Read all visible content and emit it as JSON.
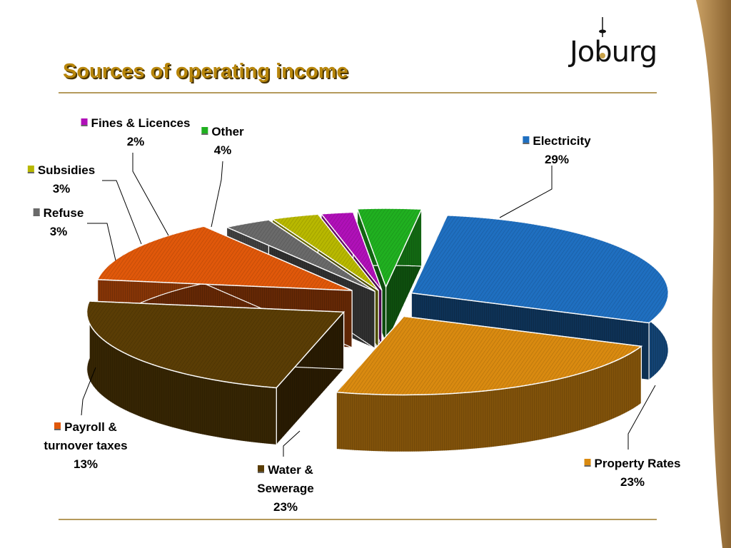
{
  "slide": {
    "title": "Sources of operating income",
    "logo_text": "Joburg"
  },
  "chart_data": {
    "type": "pie",
    "title": "Sources of operating income",
    "value_unit": "%",
    "slices": [
      {
        "name": "Electricity",
        "label": "Electricity",
        "value": 29,
        "pct_label": "29%",
        "color": "#1f6fc0"
      },
      {
        "name": "Property Rates",
        "label": "Property Rates",
        "value": 23,
        "pct_label": "23%",
        "color": "#d98a10"
      },
      {
        "name": "Water & Sewerage",
        "label": "Water & Sewerage",
        "value": 23,
        "pct_label": "23%",
        "color": "#5a3d05"
      },
      {
        "name": "Payroll & turnover taxes",
        "label": "Payroll & turnover taxes",
        "value": 13,
        "pct_label": "13%",
        "color": "#e0580a"
      },
      {
        "name": "Refuse",
        "label": "Refuse",
        "value": 3,
        "pct_label": "3%",
        "color": "#6a6a6a"
      },
      {
        "name": "Subsidies",
        "label": "Subsidies",
        "value": 3,
        "pct_label": "3%",
        "color": "#b8b800"
      },
      {
        "name": "Fines & Licences",
        "label": "Fines & Licences",
        "value": 2,
        "pct_label": "2%",
        "color": "#b010b8"
      },
      {
        "name": "Other",
        "label": "Other",
        "value": 4,
        "pct_label": "4%",
        "color": "#20b020"
      }
    ],
    "legend": "labels-with-leader-lines",
    "style": "3d-exploded"
  },
  "colors": {
    "title": "#b8860b",
    "rule": "#b59a5c",
    "side_band": "#a07a3c"
  }
}
